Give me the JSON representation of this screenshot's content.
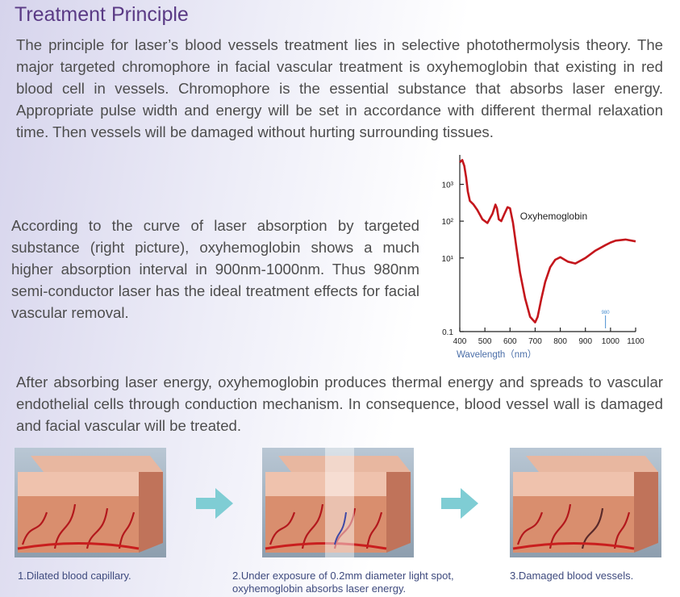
{
  "title": "Treatment Principle",
  "paragraphs": {
    "intro": "The principle for laser’s blood vessels treatment lies in selective photothermolysis theory. The major targeted chromophore in facial vascular treatment is oxyhemoglobin that existing in red blood cell in vessels. Chromophore is the essential substance that absorbs laser energy. Appropriate pulse width and energy will be set in accordance with different thermal relaxation time. Then vessels will be damaged without hurting surrounding tissues.",
    "curve": "According to the curve of laser absorption by targeted substance (right picture), oxyhemoglobin shows a much higher absorption interval in 900nm-1000nm. Thus 980nm semi-conductor laser has the ideal treatment effects for facial vascular removal.",
    "after": "After absorbing laser energy, oxyhemoglobin produces thermal energy and spreads to vascular endothelial cells through conduction mechanism. In consequence, blood vessel wall is damaged and facial vascular will be treated."
  },
  "chart_data": {
    "type": "line",
    "xlabel": "Wavelength（nm）",
    "ylabel": "",
    "x_ticks": [
      400,
      500,
      600,
      700,
      800,
      900,
      1000,
      1100
    ],
    "x_tick_labels": [
      "400",
      "500",
      "600",
      "700",
      "800",
      "900",
      "1000",
      "1100"
    ],
    "y_tick_labels": [
      "0.1",
      "10¹",
      "10²",
      "10³"
    ],
    "y_log_ticks": [
      -1,
      1,
      2,
      3
    ],
    "xlim": [
      400,
      1100
    ],
    "ylim_log10": [
      -1,
      3.8
    ],
    "grid": false,
    "annotation_label": "Oxyhemoglobin",
    "marker_label": "980",
    "marker_x": 980,
    "line_color": "#c4161c",
    "series": [
      {
        "x": [
          400,
          410,
          418,
          425,
          432,
          440,
          455,
          470,
          490,
          510,
          530,
          542,
          548,
          555,
          565,
          578,
          590,
          600,
          612,
          625,
          640,
          660,
          680,
          700,
          710,
          725,
          740,
          760,
          780,
          800,
          830,
          860,
          900,
          940,
          980,
          1000,
          1020,
          1060,
          1100
        ],
        "log10_y": [
          3.6,
          3.66,
          3.5,
          3.2,
          2.8,
          2.55,
          2.45,
          2.3,
          2.05,
          1.95,
          2.2,
          2.45,
          2.35,
          2.05,
          2.0,
          2.2,
          2.38,
          2.35,
          1.95,
          1.3,
          0.6,
          -0.1,
          -0.6,
          -0.75,
          -0.6,
          -0.1,
          0.35,
          0.75,
          0.95,
          1.02,
          0.9,
          0.85,
          1.0,
          1.2,
          1.35,
          1.42,
          1.47,
          1.5,
          1.45
        ]
      }
    ]
  },
  "steps": [
    {
      "caption": "1.Dilated blood capillary."
    },
    {
      "caption": "2.Under exposure of 0.2mm diameter light spot, oxyhemoglobin absorbs laser energy."
    },
    {
      "caption": "3.Damaged blood vessels."
    }
  ],
  "colors": {
    "title": "#5a3a85",
    "arrow": "#7fcdd4",
    "caption": "#3e4a7e",
    "axis_label": "#4a6ea8"
  }
}
